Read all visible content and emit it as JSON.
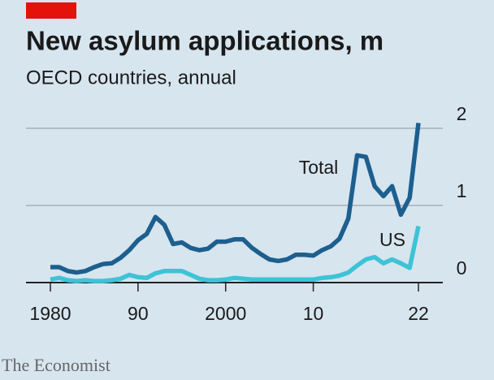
{
  "chart_data": {
    "type": "line",
    "title": "New asylum applications, m",
    "subtitle": "OECD countries, annual",
    "source": "The Economist",
    "x": [
      1980,
      1981,
      1982,
      1983,
      1984,
      1985,
      1986,
      1987,
      1988,
      1989,
      1990,
      1991,
      1992,
      1993,
      1994,
      1995,
      1996,
      1997,
      1998,
      1999,
      2000,
      2001,
      2002,
      2003,
      2004,
      2005,
      2006,
      2007,
      2008,
      2009,
      2010,
      2011,
      2012,
      2013,
      2014,
      2015,
      2016,
      2017,
      2018,
      2019,
      2020,
      2021,
      2022
    ],
    "series": [
      {
        "name": "Total",
        "color": "#1d5f8e",
        "values": [
          0.2,
          0.2,
          0.15,
          0.13,
          0.15,
          0.2,
          0.24,
          0.25,
          0.32,
          0.42,
          0.55,
          0.63,
          0.85,
          0.75,
          0.5,
          0.52,
          0.45,
          0.42,
          0.44,
          0.53,
          0.53,
          0.56,
          0.56,
          0.45,
          0.37,
          0.3,
          0.28,
          0.3,
          0.36,
          0.36,
          0.35,
          0.42,
          0.47,
          0.57,
          0.83,
          1.65,
          1.63,
          1.25,
          1.12,
          1.25,
          0.88,
          1.1,
          2.07
        ]
      },
      {
        "name": "US",
        "color": "#3ec3d6",
        "values": [
          0.04,
          0.06,
          0.03,
          0.02,
          0.03,
          0.02,
          0.02,
          0.03,
          0.05,
          0.1,
          0.07,
          0.06,
          0.12,
          0.15,
          0.15,
          0.15,
          0.1,
          0.05,
          0.03,
          0.03,
          0.04,
          0.06,
          0.05,
          0.04,
          0.04,
          0.04,
          0.04,
          0.04,
          0.04,
          0.04,
          0.04,
          0.06,
          0.07,
          0.09,
          0.13,
          0.22,
          0.3,
          0.33,
          0.25,
          0.3,
          0.25,
          0.19,
          0.73
        ]
      }
    ],
    "xlim": [
      1980,
      2022
    ],
    "xticks": [
      1980,
      {
        "value": 1990,
        "label": "90"
      },
      2000,
      {
        "value": 2010,
        "label": "10"
      },
      {
        "value": 2022,
        "label": "22"
      }
    ],
    "ylim": [
      0,
      2
    ],
    "yticks": [
      0,
      1,
      2
    ],
    "grid": true
  }
}
